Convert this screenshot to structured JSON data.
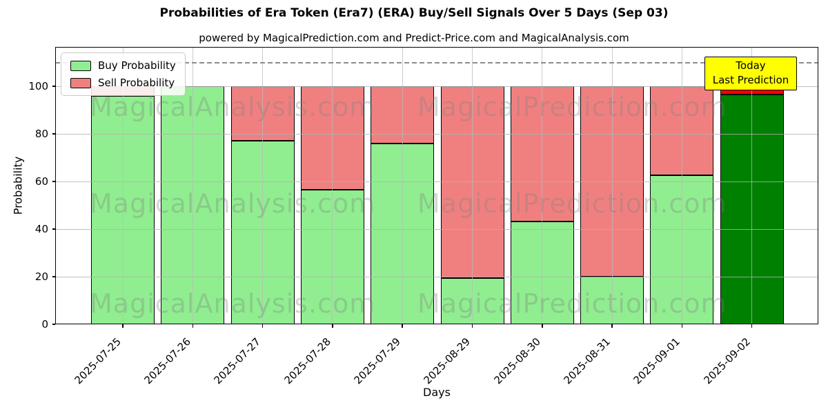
{
  "title": "Probabilities of Era Token (Era7) (ERA) Buy/Sell Signals Over 5 Days (Sep 03)",
  "subtitle": "powered by MagicalPrediction.com and Predict-Price.com and MagicalAnalysis.com",
  "legend": {
    "items": [
      {
        "label": "Buy Probability",
        "color": "#90ee90"
      },
      {
        "label": "Sell Probability",
        "color": "#f08080"
      }
    ]
  },
  "today_box": {
    "line1": "Today",
    "line2": "Last Prediction",
    "bg": "#ffff00"
  },
  "watermarks": {
    "left": "MagicalAnalysis.com",
    "right": "MagicalPrediction.com"
  },
  "chart_data": {
    "type": "bar",
    "stacked": true,
    "title": "Probabilities of Era Token (Era7) (ERA) Buy/Sell Signals Over 5 Days (Sep 03)",
    "xlabel": "Days",
    "ylabel": "Probability",
    "categories": [
      "2025-07-25",
      "2025-07-26",
      "2025-07-27",
      "2025-07-28",
      "2025-07-29",
      "2025-08-29",
      "2025-08-30",
      "2025-08-31",
      "2025-09-01",
      "2025-09-02"
    ],
    "series": [
      {
        "name": "Buy Probability",
        "color": "#90ee90",
        "values": [
          96,
          100,
          77,
          56.5,
          76,
          19.3,
          43.3,
          20,
          62.5,
          96.5
        ]
      },
      {
        "name": "Sell Probability",
        "color": "#f08080",
        "values": [
          4,
          0,
          23,
          43.5,
          24,
          80.7,
          56.7,
          80,
          37.5,
          3.5
        ]
      }
    ],
    "today_index": 9,
    "today_colors": {
      "buy": "#008000",
      "sell": "#ff0000"
    },
    "yticks": [
      0,
      20,
      40,
      60,
      80,
      100
    ],
    "ylim": [
      0,
      116.5
    ],
    "dashed_line_y": 110,
    "grid": true,
    "legend_position": "upper left",
    "bar_edge_color": "#000000"
  }
}
